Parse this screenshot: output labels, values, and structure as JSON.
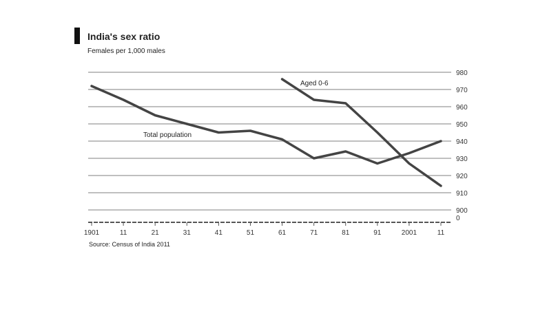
{
  "chart_data": {
    "type": "line",
    "title": "India's sex ratio",
    "subtitle": "Females per 1,000 males",
    "source": "Source: Census of India 2011",
    "x": [
      1901,
      1911,
      1921,
      1931,
      1941,
      1951,
      1961,
      1971,
      1981,
      1991,
      2001,
      2011
    ],
    "x_tick_labels": [
      "1901",
      "11",
      "21",
      "31",
      "41",
      "51",
      "61",
      "71",
      "81",
      "91",
      "2001",
      "11"
    ],
    "ylim": [
      900,
      980
    ],
    "y_ticks": [
      900,
      910,
      920,
      930,
      940,
      950,
      960,
      970,
      980
    ],
    "y_tick_labels": [
      "900",
      "910",
      "920",
      "930",
      "940",
      "950",
      "960",
      "970",
      "980"
    ],
    "y_break_label": "0",
    "y_axis_position": "right",
    "grid": true,
    "series": [
      {
        "name": "Total population",
        "x": [
          1901,
          1911,
          1921,
          1931,
          1941,
          1951,
          1961,
          1971,
          1981,
          1991,
          2001,
          2011
        ],
        "values": [
          972,
          964,
          955,
          950,
          945,
          946,
          941,
          930,
          934,
          927,
          933,
          940
        ],
        "color": "#444444"
      },
      {
        "name": "Aged 0-6",
        "x": [
          1961,
          1971,
          1981,
          1991,
          2001,
          2011
        ],
        "values": [
          976,
          964,
          962,
          945,
          927,
          914
        ],
        "color": "#444444"
      }
    ]
  }
}
